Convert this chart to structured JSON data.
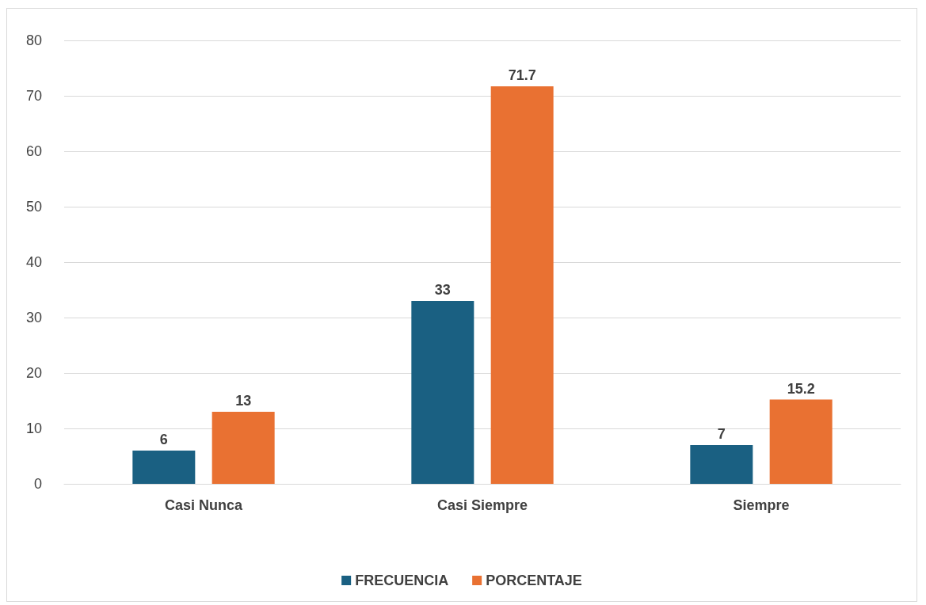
{
  "chart_data": {
    "type": "bar",
    "categories": [
      "Casi Nunca",
      "Casi Siempre",
      "Siempre"
    ],
    "series": [
      {
        "name": "FRECUENCIA",
        "color": "#1a6082",
        "values": [
          6,
          33,
          7
        ]
      },
      {
        "name": "PORCENTAJE",
        "color": "#e97132",
        "values": [
          13,
          71.7,
          15.2
        ]
      }
    ],
    "ylim": [
      0,
      80
    ],
    "yticks": [
      0,
      10,
      20,
      30,
      40,
      50,
      60,
      70,
      80
    ],
    "grid": "y",
    "legend": "bottom",
    "data_labels": true
  }
}
